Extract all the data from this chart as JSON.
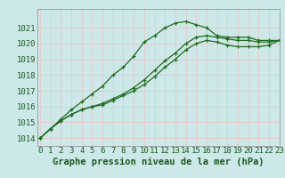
{
  "title": "Graphe pression niveau de la mer (hPa)",
  "xlabel_hours": [
    0,
    1,
    2,
    3,
    4,
    5,
    6,
    7,
    8,
    9,
    10,
    11,
    12,
    13,
    14,
    15,
    16,
    17,
    18,
    19,
    20,
    21,
    22,
    23
  ],
  "ylim": [
    1013.5,
    1022.2
  ],
  "xlim": [
    -0.3,
    23
  ],
  "yticks": [
    1014,
    1015,
    1016,
    1017,
    1018,
    1019,
    1020,
    1021
  ],
  "line1": [
    1014.0,
    1014.6,
    1015.2,
    1015.8,
    1016.3,
    1016.8,
    1017.3,
    1018.0,
    1018.5,
    1019.2,
    1020.1,
    1020.5,
    1021.0,
    1021.3,
    1021.4,
    1021.2,
    1021.0,
    1020.5,
    1020.4,
    1020.4,
    1020.4,
    1020.2,
    1020.2,
    1020.2
  ],
  "line2": [
    1014.0,
    1014.6,
    1015.1,
    1015.5,
    1015.8,
    1016.0,
    1016.2,
    1016.5,
    1016.8,
    1017.2,
    1017.7,
    1018.3,
    1018.9,
    1019.4,
    1020.0,
    1020.4,
    1020.5,
    1020.4,
    1020.3,
    1020.2,
    1020.2,
    1020.1,
    1020.1,
    1020.2
  ],
  "line3": [
    1014.0,
    1014.6,
    1015.1,
    1015.5,
    1015.8,
    1016.0,
    1016.1,
    1016.4,
    1016.7,
    1017.0,
    1017.4,
    1017.9,
    1018.5,
    1019.0,
    1019.6,
    1020.0,
    1020.2,
    1020.1,
    1019.9,
    1019.8,
    1019.8,
    1019.8,
    1019.9,
    1020.2
  ],
  "line_color": "#1a6e1a",
  "bg_color": "#cce8e8",
  "grid_color": "#e8c8c8",
  "label_color": "#1a5c1a",
  "title_color": "#1a5c1a",
  "title_fontsize": 7.5,
  "tick_fontsize": 6.5
}
